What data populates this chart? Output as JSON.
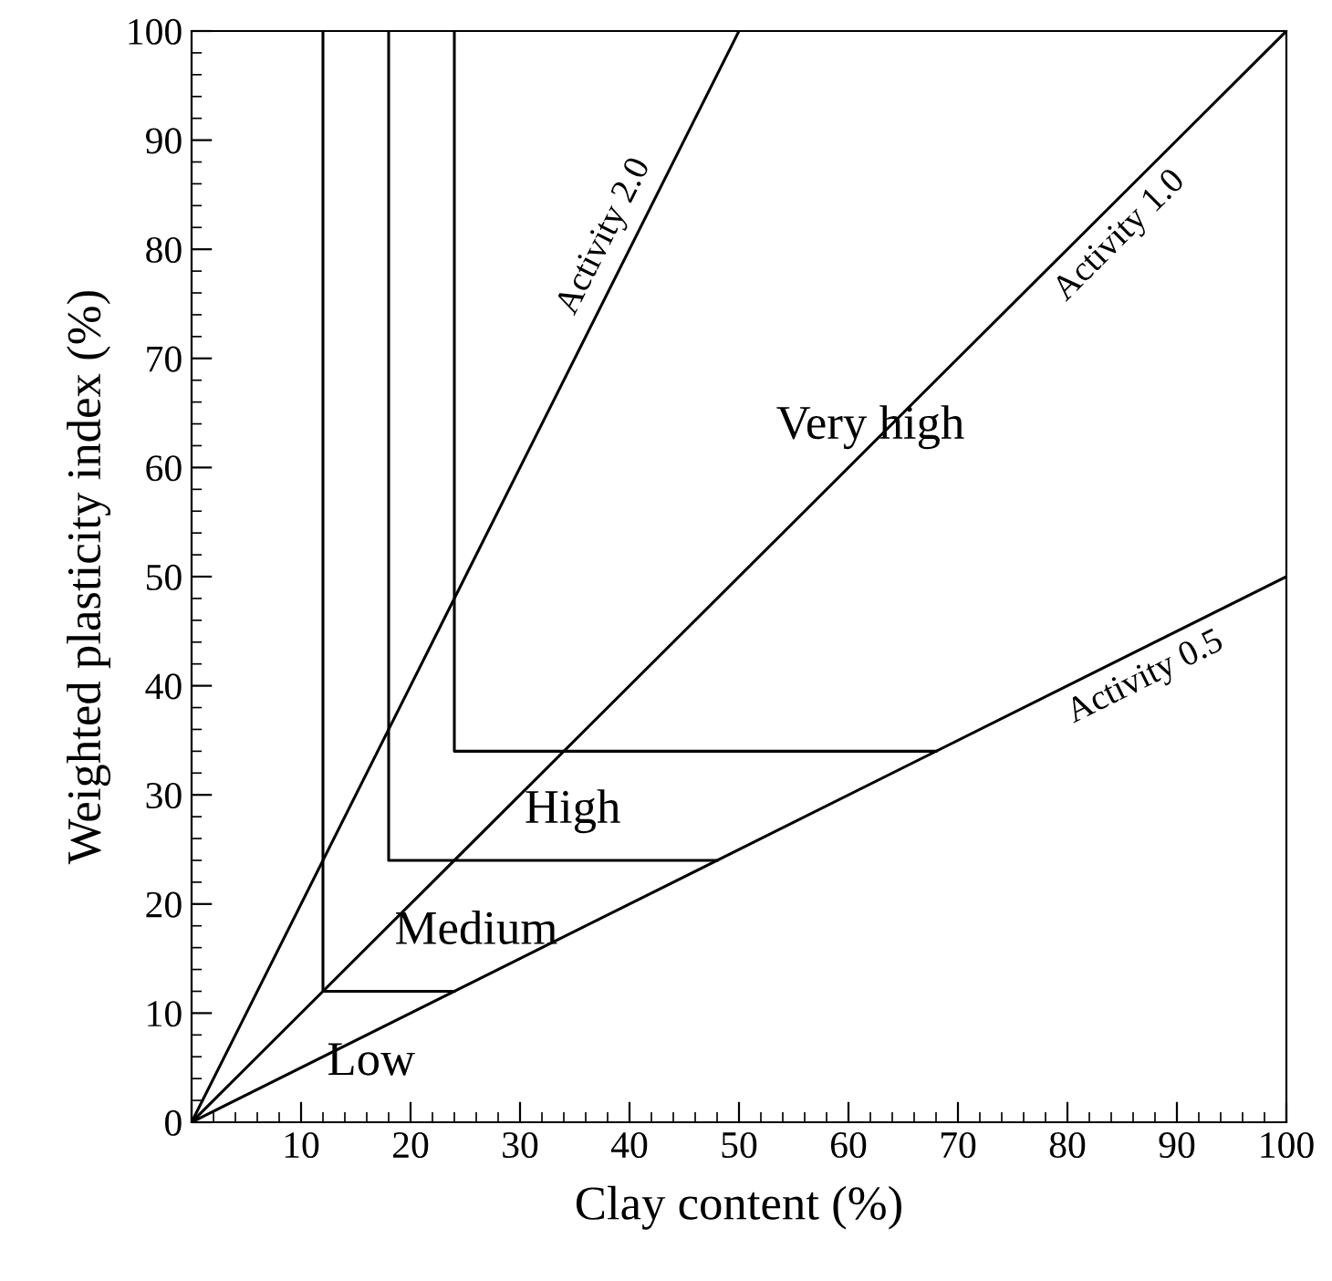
{
  "chart_data": {
    "type": "line",
    "xlabel": "Clay content (%)",
    "ylabel": "Weighted plasticity index (%)",
    "xlim": [
      0,
      100
    ],
    "ylim": [
      0,
      100
    ],
    "xticks": [
      {
        "value": 0,
        "label": null
      },
      10,
      20,
      30,
      40,
      50,
      60,
      70,
      80,
      90,
      100
    ],
    "yticks": [
      0,
      10,
      20,
      30,
      40,
      50,
      60,
      70,
      80,
      90,
      100
    ],
    "grid": false,
    "series": [
      {
        "color": "#000000",
        "x": [
          0,
          50
        ],
        "values": [
          0,
          100
        ]
      },
      {
        "color": "#000000",
        "x": [
          0,
          100
        ],
        "values": [
          0,
          100
        ]
      },
      {
        "color": "#000000",
        "x": [
          0,
          100
        ],
        "values": [
          0,
          50
        ]
      },
      {
        "color": "#000000",
        "x": [
          12,
          12,
          24
        ],
        "values": [
          100,
          12,
          12
        ]
      },
      {
        "color": "#000000",
        "x": [
          18,
          18,
          48
        ],
        "values": [
          100,
          24,
          24
        ]
      },
      {
        "color": "#000000",
        "x": [
          24,
          24,
          68
        ],
        "values": [
          100,
          34,
          34
        ]
      }
    ],
    "annotations": [
      {
        "text": "Activity 2.0",
        "x": 40,
        "y": 80
      },
      {
        "text": "Activity 1.0",
        "x": 83,
        "y": 83
      },
      {
        "text": "Activity 0.5",
        "x": 86,
        "y": 43
      },
      "Low",
      "Medium",
      "High",
      "Very high"
    ]
  }
}
